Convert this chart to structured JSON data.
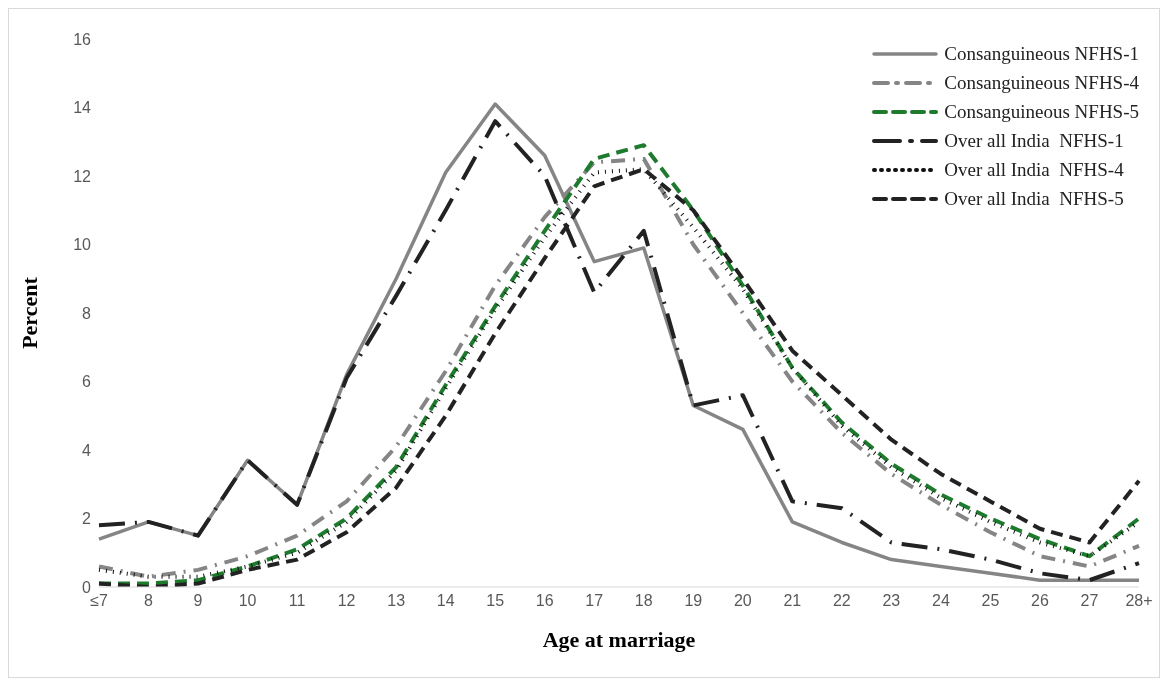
{
  "chart_data": {
    "type": "line",
    "xlabel": "Age at marriage",
    "ylabel": "Percent",
    "categories": [
      "≤7",
      "8",
      "9",
      "10",
      "11",
      "12",
      "13",
      "14",
      "15",
      "16",
      "17",
      "18",
      "19",
      "20",
      "21",
      "22",
      "23",
      "24",
      "25",
      "26",
      "27",
      "28+"
    ],
    "ylim": [
      0,
      16
    ],
    "yticks": [
      0,
      2,
      4,
      6,
      8,
      10,
      12,
      14,
      16
    ],
    "grid": false,
    "legend": "top right",
    "marker": "none",
    "series": [
      {
        "name": "Consanguineous NFHS-1",
        "color": "#858585",
        "line_style": "solid",
        "values": [
          1.4,
          1.9,
          1.5,
          3.7,
          2.4,
          6.2,
          9.0,
          12.1,
          14.1,
          12.6,
          9.5,
          9.9,
          5.3,
          4.6,
          1.9,
          1.3,
          0.8,
          0.6,
          0.4,
          0.2,
          0.2,
          0.2
        ]
      },
      {
        "name": "Consanguineous NFHS-4",
        "color": "#858585",
        "line_style": "dashdot",
        "values": [
          0.6,
          0.3,
          0.5,
          0.9,
          1.5,
          2.5,
          4.1,
          6.3,
          8.8,
          10.8,
          12.4,
          12.5,
          10.0,
          8.0,
          6.0,
          4.5,
          3.3,
          2.4,
          1.6,
          0.9,
          0.6,
          1.2
        ]
      },
      {
        "name": "Consanguineous NFHS-5",
        "color": "#1e7b2e",
        "line_style": "dashed",
        "values": [
          0.1,
          0.1,
          0.2,
          0.6,
          1.1,
          2.0,
          3.5,
          5.9,
          8.2,
          10.4,
          12.5,
          12.9,
          11.0,
          8.8,
          6.4,
          4.8,
          3.6,
          2.7,
          2.0,
          1.4,
          0.9,
          2.0
        ]
      },
      {
        "name": "Over all India  NFHS-1",
        "color": "#222222",
        "line_style": "longdashdot",
        "values": [
          1.8,
          1.9,
          1.5,
          3.7,
          2.4,
          6.1,
          8.5,
          11.0,
          13.6,
          12.0,
          8.6,
          10.4,
          5.3,
          5.6,
          2.5,
          2.3,
          1.3,
          1.1,
          0.8,
          0.4,
          0.2,
          0.7
        ]
      },
      {
        "name": "Over all India  NFHS-4",
        "color": "#111111",
        "line_style": "dotted",
        "values": [
          0.5,
          0.3,
          0.3,
          0.6,
          1.0,
          1.9,
          3.4,
          5.8,
          8.1,
          10.2,
          12.1,
          12.2,
          10.5,
          8.7,
          6.4,
          4.7,
          3.5,
          2.6,
          1.9,
          1.3,
          0.9,
          1.9
        ]
      },
      {
        "name": "Over all India  NFHS-5",
        "color": "#222222",
        "line_style": "dashed",
        "values": [
          0.1,
          0.0,
          0.1,
          0.5,
          0.8,
          1.6,
          2.9,
          5.0,
          7.4,
          9.6,
          11.7,
          12.2,
          11.0,
          9.0,
          6.9,
          5.6,
          4.3,
          3.3,
          2.5,
          1.7,
          1.3,
          3.1
        ]
      }
    ]
  }
}
